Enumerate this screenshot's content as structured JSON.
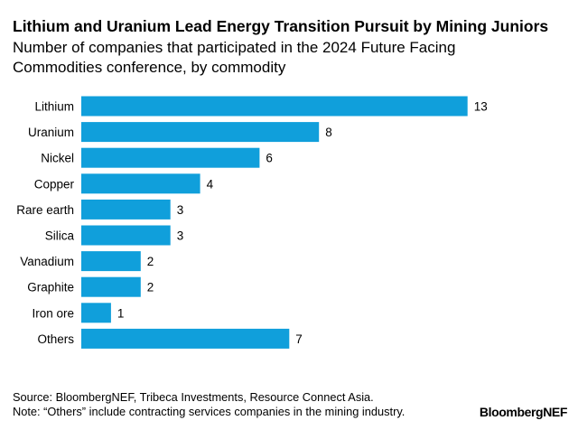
{
  "header": {
    "title": "Lithium and Uranium Lead Energy Transition Pursuit by Mining Juniors",
    "subtitle": "Number of companies that participated in the 2024 Future Facing Commodities conference, by commodity"
  },
  "footer": {
    "source": "Source: BloombergNEF, Tribeca Investments, Resource Connect Asia.",
    "note": "Note: “Others” include contracting services companies in the mining industry.",
    "logo_text": "BloombergNEF"
  },
  "colors": {
    "bar": "#109fdb"
  },
  "chart_data": {
    "type": "bar",
    "orientation": "horizontal",
    "title": "Lithium and Uranium Lead Energy Transition Pursuit by Mining Juniors",
    "subtitle": "Number of companies that participated in the 2024 Future Facing Commodities conference, by commodity",
    "categories": [
      "Lithium",
      "Uranium",
      "Nickel",
      "Copper",
      "Rare earth",
      "Silica",
      "Vanadium",
      "Graphite",
      "Iron ore",
      "Others"
    ],
    "values": [
      13,
      8,
      6,
      4,
      3,
      3,
      2,
      2,
      1,
      7
    ],
    "xlim": [
      0,
      13
    ],
    "data_labels": true,
    "grid": false,
    "legend": "none"
  }
}
